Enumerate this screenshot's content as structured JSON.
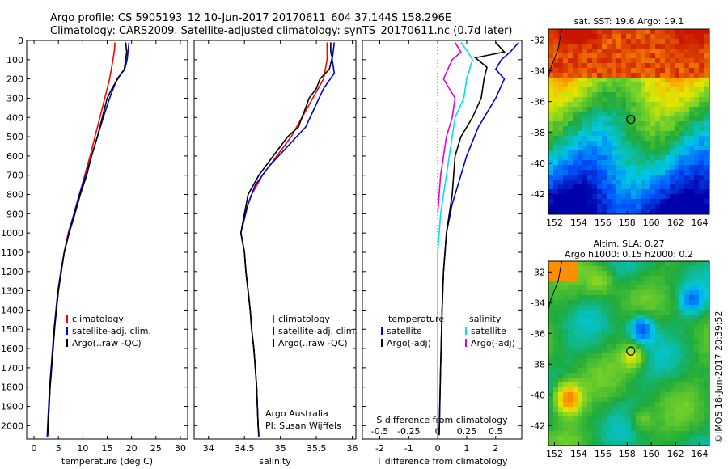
{
  "header": {
    "line1": "Argo profile: CS 5905193_12 10-Jun-2017 20170611_604 37.144S 158.296E",
    "line2": "Climatology: CARS2009. Satellite-adjusted climatology: synTS_20170611.nc (0.7d later)"
  },
  "stamp": "©IMOS 18-Jun-2017 20:39:52",
  "colors": {
    "climatology": "#ff0000",
    "satellite": "#0000dd",
    "argo": "#000000",
    "sat_salinity": "#00e0e8",
    "argo_salinity": "#e000e0"
  },
  "depth_axis": {
    "ticks": [
      "0",
      "100",
      "200",
      "300",
      "400",
      "500",
      "600",
      "700",
      "800",
      "900",
      "1000",
      "1100",
      "1200",
      "1300",
      "1400",
      "1500",
      "1600",
      "1700",
      "1800",
      "1900",
      "2000"
    ],
    "range": [
      0,
      2070
    ]
  },
  "chart_data": [
    {
      "type": "line",
      "xlabel": "temperature (deg C)",
      "x_ticks": [
        "0",
        "5",
        "10",
        "15",
        "20",
        "25",
        "30"
      ],
      "xlim": [
        -1.5,
        31.5
      ],
      "ylim": [
        0,
        2070
      ],
      "legend": [
        "climatology",
        "satellite-adj. clim.",
        "Argo(..raw -QC)"
      ],
      "series": [
        {
          "name": "climatology",
          "color": "climatology",
          "points": [
            [
              16.6,
              10
            ],
            [
              16.5,
              50
            ],
            [
              16.2,
              100
            ],
            [
              15.5,
              200
            ],
            [
              14.5,
              300
            ],
            [
              13.5,
              400
            ],
            [
              12.5,
              500
            ],
            [
              11.5,
              600
            ],
            [
              10.4,
              700
            ],
            [
              9.3,
              800
            ],
            [
              8.2,
              900
            ],
            [
              7.0,
              1000
            ],
            [
              6.2,
              1100
            ],
            [
              5.5,
              1200
            ],
            [
              5.0,
              1300
            ],
            [
              4.5,
              1400
            ],
            [
              4.2,
              1500
            ],
            [
              3.9,
              1600
            ],
            [
              3.6,
              1700
            ],
            [
              3.3,
              1800
            ],
            [
              3.1,
              1900
            ],
            [
              2.9,
              2000
            ],
            [
              2.8,
              2060
            ]
          ]
        },
        {
          "name": "satellite-adj. clim.",
          "color": "satellite",
          "points": [
            [
              19.5,
              10
            ],
            [
              19.3,
              50
            ],
            [
              19.1,
              100
            ],
            [
              18.6,
              150
            ],
            [
              17.0,
              200
            ],
            [
              15.5,
              300
            ],
            [
              14.2,
              400
            ],
            [
              13.0,
              500
            ],
            [
              11.8,
              600
            ],
            [
              10.6,
              700
            ],
            [
              9.3,
              800
            ],
            [
              8.2,
              900
            ],
            [
              7.1,
              1000
            ],
            [
              6.2,
              1100
            ],
            [
              5.5,
              1200
            ],
            [
              4.9,
              1300
            ],
            [
              4.5,
              1400
            ],
            [
              4.1,
              1500
            ],
            [
              3.8,
              1600
            ],
            [
              3.5,
              1700
            ],
            [
              3.2,
              1800
            ],
            [
              3.0,
              1900
            ],
            [
              2.8,
              2000
            ],
            [
              2.7,
              2060
            ]
          ]
        },
        {
          "name": "Argo(..raw -QC)",
          "color": "argo",
          "points": [
            [
              18.8,
              10
            ],
            [
              19.0,
              60
            ],
            [
              18.8,
              100
            ],
            [
              18.5,
              150
            ],
            [
              17.4,
              190
            ],
            [
              16.0,
              250
            ],
            [
              15.0,
              300
            ],
            [
              14.0,
              400
            ],
            [
              13.0,
              500
            ],
            [
              11.8,
              600
            ],
            [
              10.8,
              700
            ],
            [
              9.5,
              800
            ],
            [
              8.4,
              900
            ],
            [
              7.2,
              1000
            ],
            [
              6.2,
              1100
            ],
            [
              5.6,
              1200
            ],
            [
              5.0,
              1300
            ],
            [
              4.6,
              1400
            ],
            [
              4.2,
              1500
            ],
            [
              3.9,
              1600
            ],
            [
              3.6,
              1700
            ],
            [
              3.3,
              1800
            ],
            [
              3.1,
              1900
            ],
            [
              2.9,
              2000
            ],
            [
              2.8,
              2050
            ]
          ]
        }
      ]
    },
    {
      "type": "line",
      "xlabel": "salinity",
      "x_ticks": [
        "34",
        "34.5",
        "35",
        "35.5",
        "36"
      ],
      "xlim": [
        33.8,
        36.05
      ],
      "ylim": [
        0,
        2070
      ],
      "legend": [
        "climatology",
        "satellite-adj. clim.",
        "Argo(..raw -QC)"
      ],
      "annotation": [
        "Argo Australia",
        "PI: Susan Wijffels"
      ],
      "series": [
        {
          "name": "climatology",
          "color": "climatology",
          "points": [
            [
              35.65,
              10
            ],
            [
              35.65,
              100
            ],
            [
              35.6,
              200
            ],
            [
              35.45,
              300
            ],
            [
              35.3,
              400
            ],
            [
              35.15,
              500
            ],
            [
              34.95,
              600
            ],
            [
              34.75,
              700
            ],
            [
              34.6,
              800
            ],
            [
              34.5,
              900
            ],
            [
              34.45,
              1000
            ],
            [
              34.5,
              1100
            ],
            [
              34.52,
              1200
            ],
            [
              34.55,
              1300
            ],
            [
              34.58,
              1400
            ],
            [
              34.6,
              1500
            ],
            [
              34.63,
              1600
            ],
            [
              34.65,
              1700
            ],
            [
              34.67,
              1800
            ],
            [
              34.68,
              1900
            ],
            [
              34.69,
              2000
            ],
            [
              34.7,
              2060
            ]
          ]
        },
        {
          "name": "satellite-adj. clim.",
          "color": "satellite",
          "points": [
            [
              35.75,
              10
            ],
            [
              35.72,
              100
            ],
            [
              35.75,
              170
            ],
            [
              35.6,
              250
            ],
            [
              35.5,
              330
            ],
            [
              35.35,
              450
            ],
            [
              35.1,
              550
            ],
            [
              34.85,
              650
            ],
            [
              34.65,
              750
            ],
            [
              34.55,
              850
            ],
            [
              34.45,
              1000
            ],
            [
              34.5,
              1100
            ],
            [
              34.52,
              1200
            ],
            [
              34.55,
              1300
            ],
            [
              34.58,
              1400
            ],
            [
              34.6,
              1500
            ],
            [
              34.63,
              1600
            ],
            [
              34.65,
              1700
            ],
            [
              34.67,
              1800
            ],
            [
              34.68,
              1900
            ],
            [
              34.69,
              2000
            ],
            [
              34.7,
              2060
            ]
          ]
        },
        {
          "name": "Argo(..raw -QC)",
          "color": "argo",
          "points": [
            [
              35.7,
              10
            ],
            [
              35.7,
              60
            ],
            [
              35.72,
              90
            ],
            [
              35.68,
              150
            ],
            [
              35.55,
              200
            ],
            [
              35.5,
              250
            ],
            [
              35.4,
              300
            ],
            [
              35.35,
              350
            ],
            [
              35.3,
              400
            ],
            [
              35.25,
              450
            ],
            [
              35.1,
              500
            ],
            [
              34.9,
              600
            ],
            [
              34.7,
              700
            ],
            [
              34.55,
              800
            ],
            [
              34.5,
              900
            ],
            [
              34.45,
              1000
            ],
            [
              34.5,
              1100
            ],
            [
              34.52,
              1200
            ],
            [
              34.55,
              1300
            ],
            [
              34.58,
              1400
            ],
            [
              34.6,
              1500
            ],
            [
              34.63,
              1600
            ],
            [
              34.65,
              1700
            ],
            [
              34.67,
              1800
            ],
            [
              34.68,
              1900
            ],
            [
              34.69,
              2000
            ],
            [
              34.7,
              2050
            ]
          ]
        }
      ]
    },
    {
      "type": "line",
      "xlabel": "T difference from climatology",
      "x_ticks": [
        "-2",
        "-1",
        "0",
        "1",
        "2"
      ],
      "xlim": [
        -2.6,
        2.9
      ],
      "top_axis_label": "S difference from climatology",
      "top_ticks": [
        "-0.5",
        "-0.25",
        "0",
        "0.25",
        "0.5"
      ],
      "top_ticks_t_position": [
        -2,
        -1,
        0,
        1,
        2
      ],
      "ylim": [
        0,
        2070
      ],
      "legend_left_title": "temperature",
      "legend_right_title": "salinity",
      "legend_left": [
        "satellite",
        "Argo(-adj)"
      ],
      "legend_right": [
        "satellite",
        "Argo(-adj)"
      ],
      "series": [
        {
          "name": "temperature satellite",
          "color": "satellite",
          "points": [
            [
              2.8,
              10
            ],
            [
              2.5,
              60
            ],
            [
              2.2,
              100
            ],
            [
              2.0,
              150
            ],
            [
              2.3,
              200
            ],
            [
              2.0,
              300
            ],
            [
              1.8,
              350
            ],
            [
              1.4,
              450
            ],
            [
              1.0,
              600
            ],
            [
              0.8,
              700
            ],
            [
              0.5,
              850
            ],
            [
              0.3,
              1000
            ],
            [
              0.2,
              1200
            ],
            [
              0.15,
              1400
            ],
            [
              0.1,
              1700
            ],
            [
              0.05,
              2050
            ]
          ]
        },
        {
          "name": "temperature Argo(-adj)",
          "color": "argo",
          "points": [
            [
              2.0,
              10
            ],
            [
              2.3,
              60
            ],
            [
              1.3,
              90
            ],
            [
              1.7,
              140
            ],
            [
              1.6,
              200
            ],
            [
              1.5,
              300
            ],
            [
              1.2,
              400
            ],
            [
              0.8,
              500
            ],
            [
              0.6,
              600
            ],
            [
              0.5,
              800
            ],
            [
              0.3,
              1000
            ],
            [
              0.2,
              1200
            ],
            [
              0.15,
              1400
            ],
            [
              0.1,
              1700
            ],
            [
              0.05,
              2050
            ]
          ]
        },
        {
          "name": "salinity satellite",
          "color": "sat_salinity",
          "points": [
            [
              0.8,
              10
            ],
            [
              1.0,
              50
            ],
            [
              1.2,
              100
            ],
            [
              1.0,
              200
            ],
            [
              0.9,
              300
            ],
            [
              0.6,
              400
            ],
            [
              0.5,
              500
            ],
            [
              0.3,
              700
            ],
            [
              0.1,
              900
            ],
            [
              0.0,
              1100
            ],
            [
              0.0,
              1400
            ],
            [
              0.0,
              2050
            ]
          ]
        },
        {
          "name": "salinity Argo(-adj)",
          "color": "argo_salinity",
          "points": [
            [
              0.6,
              10
            ],
            [
              0.8,
              60
            ],
            [
              0.5,
              100
            ],
            [
              0.2,
              200
            ],
            [
              0.6,
              300
            ],
            [
              0.5,
              400
            ],
            [
              0.3,
              500
            ],
            [
              0.2,
              600
            ],
            [
              0.1,
              700
            ],
            [
              0.0,
              900
            ]
          ]
        }
      ]
    }
  ],
  "maps": [
    {
      "title": "sat. SST: 19.6 Argo: 19.1",
      "subtitle": "",
      "kind": "sst",
      "x_ticks": [
        "152",
        "154",
        "156",
        "158",
        "160",
        "162",
        "164"
      ],
      "y_ticks": [
        "-32",
        "-34",
        "-36",
        "-38",
        "-40",
        "-42"
      ],
      "xlim": [
        151.5,
        164.8
      ],
      "ylim": [
        -43.3,
        -31.3
      ],
      "argo_location": [
        158.3,
        -37.15
      ]
    },
    {
      "title": "Altim. SLA: 0.27",
      "subtitle": "Argo h1000: 0.15 h2000: 0.2",
      "kind": "sla",
      "x_ticks": [
        "152",
        "154",
        "156",
        "158",
        "160",
        "162",
        "164"
      ],
      "y_ticks": [
        "-32",
        "-34",
        "-36",
        "-38",
        "-40",
        "-42"
      ],
      "xlim": [
        151.5,
        164.8
      ],
      "ylim": [
        -43.3,
        -31.3
      ],
      "argo_location": [
        158.3,
        -37.15
      ]
    }
  ]
}
